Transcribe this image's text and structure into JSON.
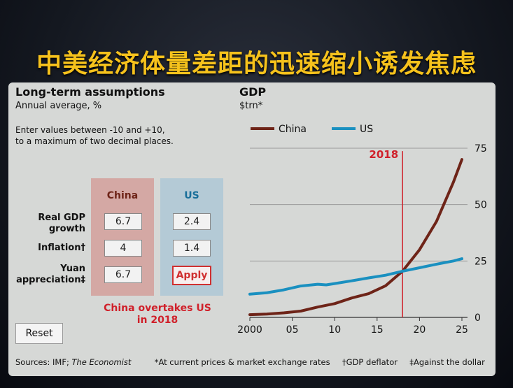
{
  "slide": {
    "title": "中美经济体量差距的迅速缩小诱发焦虑"
  },
  "left_panel": {
    "title": "Long-term assumptions",
    "subtitle": "Annual average, %",
    "instructions_line1": "Enter values between -10 and +10,",
    "instructions_line2": "to a maximum of two decimal places.",
    "col_china": "China",
    "col_us": "US",
    "rows": [
      {
        "label_line1": "Real GDP",
        "label_line2": "growth",
        "china": "6.7",
        "us": "2.4"
      },
      {
        "label_line1": "Inflation†",
        "label_line2": "",
        "china": "4",
        "us": "1.4"
      },
      {
        "label_line1": "Yuan",
        "label_line2": "appreciation‡",
        "china": "6.7",
        "us_button": "Apply"
      }
    ],
    "result_line1": "China overtakes US",
    "result_line2": "in 2018",
    "reset_label": "Reset"
  },
  "footer": {
    "sources_prefix": "Sources: IMF; ",
    "sources_italic": "The Economist",
    "note1": "*At current prices & market exchange rates",
    "note2": "†GDP deflator",
    "note3": "‡Against the dollar"
  },
  "colors": {
    "china": "#6e2418",
    "us": "#1a90c0",
    "marker": "#d0202a",
    "title": "#f6c21c"
  },
  "chart_data": {
    "type": "line",
    "title": "GDP",
    "ylabel": "$trn*",
    "xlim": [
      2000,
      2025
    ],
    "ylim": [
      0,
      75
    ],
    "x_ticks": [
      2000,
      2005,
      2010,
      2015,
      2020,
      2025
    ],
    "x_tick_labels": [
      "2000",
      "05",
      "10",
      "15",
      "20",
      "25"
    ],
    "y_ticks": [
      0,
      25,
      50,
      75
    ],
    "grid": true,
    "legend_position": "top-left",
    "marker": {
      "x": 2018,
      "label": "2018"
    },
    "series": [
      {
        "name": "China",
        "x": [
          2000,
          2002,
          2004,
          2006,
          2008,
          2010,
          2012,
          2014,
          2016,
          2018,
          2020,
          2022,
          2024,
          2025
        ],
        "y": [
          1.2,
          1.5,
          2.0,
          2.8,
          4.6,
          6.1,
          8.6,
          10.5,
          14.0,
          20.5,
          30.0,
          42.5,
          60.0,
          70.0
        ]
      },
      {
        "name": "US",
        "x": [
          2000,
          2002,
          2004,
          2006,
          2008,
          2009,
          2010,
          2012,
          2014,
          2016,
          2018,
          2020,
          2022,
          2024,
          2025
        ],
        "y": [
          10.3,
          10.9,
          12.2,
          13.9,
          14.7,
          14.4,
          15.0,
          16.2,
          17.5,
          18.7,
          20.5,
          22.0,
          23.6,
          25.0,
          26.0
        ]
      }
    ]
  }
}
